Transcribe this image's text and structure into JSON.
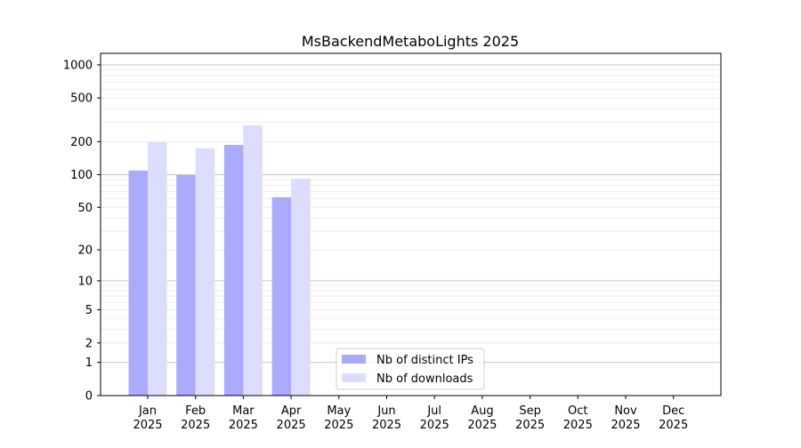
{
  "chart_data": {
    "type": "bar",
    "title": "MsBackendMetaboLights 2025",
    "xlabel": "",
    "ylabel": "",
    "yscale": "log(1+y)",
    "ylim": [
      0,
      1300
    ],
    "yticks": [
      0,
      1,
      2,
      5,
      10,
      20,
      50,
      100,
      200,
      500,
      1000
    ],
    "categories": [
      "Jan\n2025",
      "Feb\n2025",
      "Mar\n2025",
      "Apr\n2025",
      "May\n2025",
      "Jun\n2025",
      "Jul\n2025",
      "Aug\n2025",
      "Sep\n2025",
      "Oct\n2025",
      "Nov\n2025",
      "Dec\n2025"
    ],
    "series": [
      {
        "name": "Nb of distinct IPs",
        "color": "#aaaaff",
        "values": [
          109,
          99,
          187,
          62,
          null,
          null,
          null,
          null,
          null,
          null,
          null,
          null
        ]
      },
      {
        "name": "Nb of downloads",
        "color": "#ddddff",
        "values": [
          198,
          174,
          282,
          92,
          null,
          null,
          null,
          null,
          null,
          null,
          null,
          null
        ]
      }
    ],
    "grid": true,
    "legend": "lower-center"
  }
}
